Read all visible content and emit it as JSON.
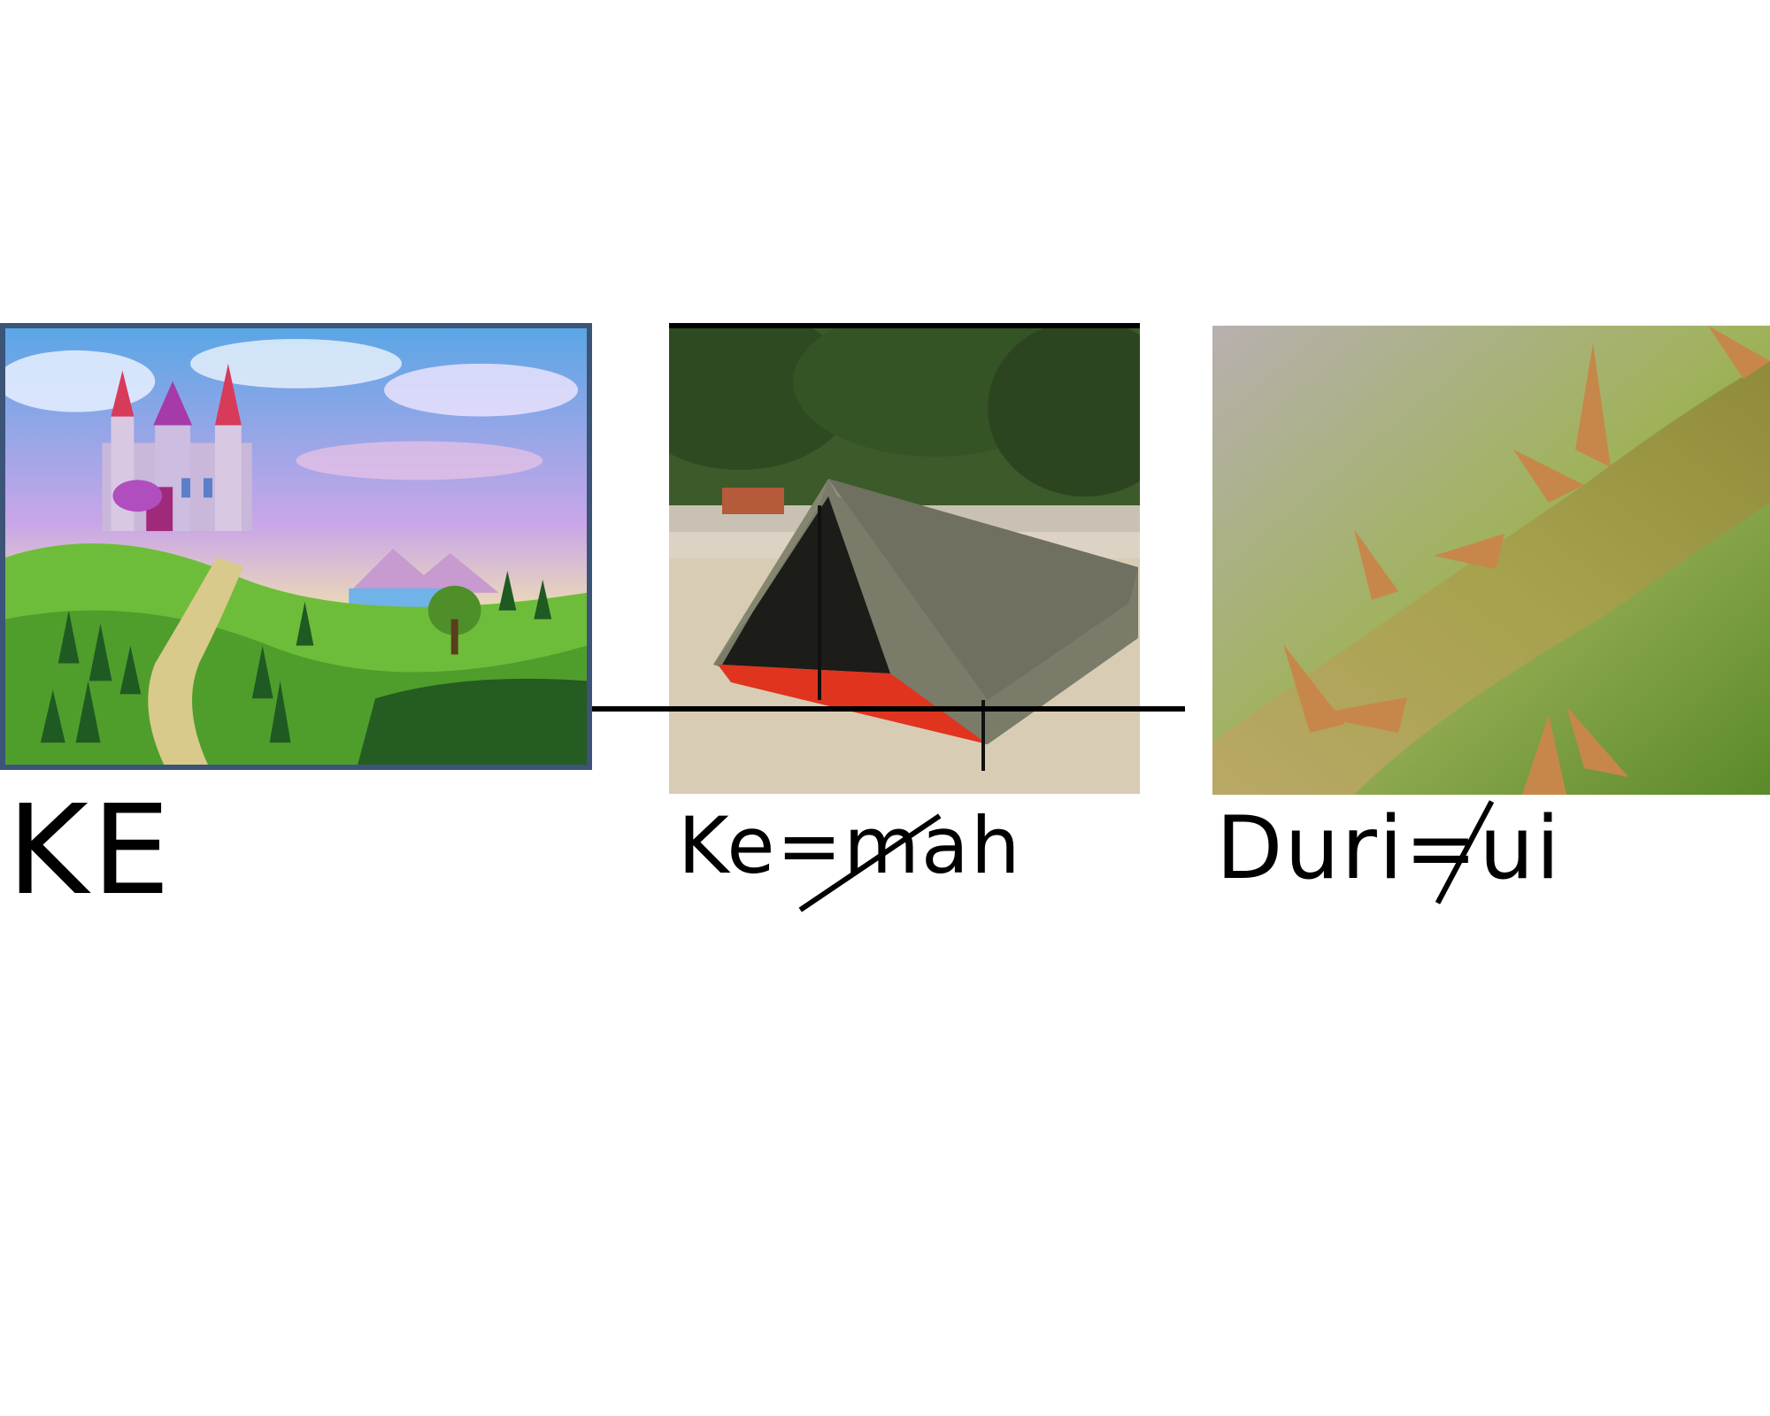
{
  "cards": [
    {
      "name": "castle",
      "word": "KE"
    },
    {
      "name": "tent",
      "word": "Ke=mah"
    },
    {
      "name": "thorn",
      "word": "Duri=ui"
    }
  ],
  "colors": {
    "background": "#ffffff",
    "ink": "#000000",
    "frame": "#3b5478"
  }
}
